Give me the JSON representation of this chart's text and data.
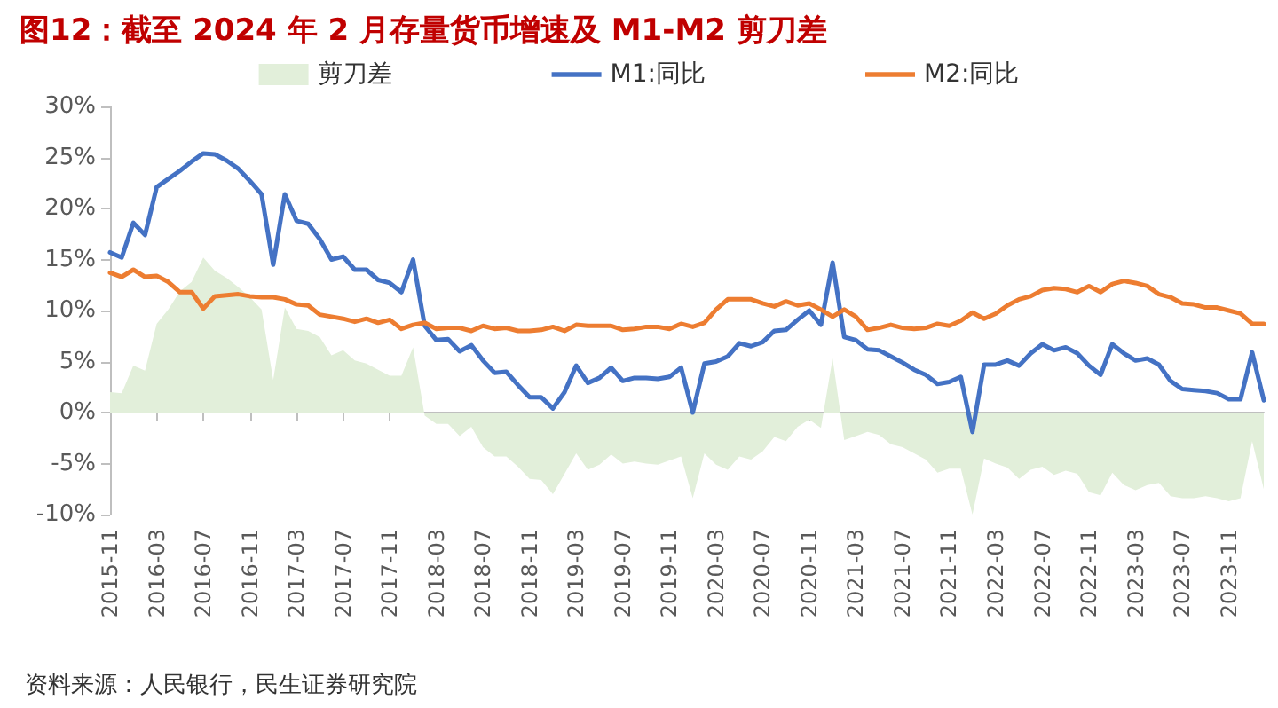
{
  "chart_data": {
    "type": "line",
    "title": "图12：截至 2024 年 2 月存量货币增速及 M1-M2 剪刀差",
    "annotations": [
      "资料来源：人民银行，民生证券研究院"
    ],
    "categories": [
      "2015-11",
      null,
      null,
      null,
      "2016-03",
      null,
      null,
      null,
      "2016-07",
      null,
      null,
      null,
      "2016-11",
      null,
      null,
      null,
      "2017-03",
      null,
      null,
      null,
      "2017-07",
      null,
      null,
      null,
      "2017-11",
      null,
      null,
      null,
      "2018-03",
      null,
      null,
      null,
      "2018-07",
      null,
      null,
      null,
      "2018-11",
      null,
      null,
      null,
      "2019-03",
      null,
      null,
      null,
      "2019-07",
      null,
      null,
      null,
      "2019-11",
      null,
      null,
      null,
      "2020-03",
      null,
      null,
      null,
      "2020-07",
      null,
      null,
      null,
      "2020-11",
      null,
      null,
      null,
      "2021-03",
      null,
      null,
      null,
      "2021-07",
      null,
      null,
      null,
      "2021-11",
      null,
      null,
      null,
      "2022-03",
      null,
      null,
      null,
      "2022-07",
      null,
      null,
      null,
      "2022-11",
      null,
      null,
      null,
      "2023-03",
      null,
      null,
      null,
      "2023-07",
      null,
      null,
      null,
      "2023-11",
      null,
      null,
      null
    ],
    "series": [
      {
        "name": "剪刀差",
        "type": "area",
        "color": "#e2efda",
        "values": [
          2.0,
          1.9,
          4.6,
          4.1,
          8.7,
          10.1,
          11.9,
          12.8,
          15.2,
          13.9,
          13.2,
          12.3,
          11.3,
          10.1,
          3.2,
          10.3,
          8.2,
          8.0,
          7.4,
          5.6,
          6.1,
          5.1,
          4.8,
          4.2,
          3.6,
          3.6,
          6.4,
          -0.3,
          -1.1,
          -1.1,
          -2.3,
          -1.4,
          -3.4,
          -4.3,
          -4.3,
          -5.3,
          -6.5,
          -6.6,
          -8.0,
          -6.0,
          -4.0,
          -5.6,
          -5.1,
          -4.1,
          -5.0,
          -4.8,
          -5.0,
          -5.1,
          -4.7,
          -4.3,
          -8.4,
          -4.0,
          -5.1,
          -5.6,
          -4.3,
          -4.6,
          -3.8,
          -2.4,
          -2.8,
          -1.4,
          -0.7,
          -1.5,
          5.3,
          -2.7,
          -2.3,
          -1.9,
          -2.2,
          -3.1,
          -3.4,
          -4.0,
          -4.6,
          -5.9,
          -5.5,
          -5.5,
          -10.0,
          -4.5,
          -5.0,
          -5.4,
          -6.5,
          -5.6,
          -5.3,
          -6.1,
          -5.7,
          -6.0,
          -7.8,
          -8.1,
          -5.9,
          -7.1,
          -7.6,
          -7.1,
          -6.9,
          -8.2,
          -8.4,
          -8.4,
          -8.2,
          -8.4,
          -8.7,
          -8.4,
          -2.8,
          -7.5
        ]
      },
      {
        "name": "M1:同比",
        "color": "#4472c4",
        "values": [
          15.7,
          15.2,
          18.6,
          17.4,
          22.1,
          22.9,
          23.7,
          24.6,
          25.4,
          25.3,
          24.7,
          23.9,
          22.7,
          21.4,
          14.5,
          21.4,
          18.8,
          18.5,
          17.0,
          15.0,
          15.3,
          14.0,
          14.0,
          13.0,
          12.7,
          11.8,
          15.0,
          8.5,
          7.1,
          7.2,
          6.0,
          6.6,
          5.1,
          3.9,
          4.0,
          2.7,
          1.5,
          1.5,
          0.4,
          2.0,
          4.6,
          2.9,
          3.4,
          4.4,
          3.1,
          3.4,
          3.4,
          3.3,
          3.5,
          4.4,
          0.0,
          4.8,
          5.0,
          5.5,
          6.8,
          6.5,
          6.9,
          8.0,
          8.1,
          9.1,
          10.0,
          8.6,
          14.7,
          7.4,
          7.1,
          6.2,
          6.1,
          5.5,
          4.9,
          4.2,
          3.7,
          2.8,
          3.0,
          3.5,
          -1.9,
          4.7,
          4.7,
          5.1,
          4.6,
          5.8,
          6.7,
          6.1,
          6.4,
          5.8,
          4.6,
          3.7,
          6.7,
          5.8,
          5.1,
          5.3,
          4.7,
          3.1,
          2.3,
          2.2,
          2.1,
          1.9,
          1.3,
          1.3,
          5.9,
          1.2
        ]
      },
      {
        "name": "M2:同比",
        "color": "#ed7d31",
        "values": [
          13.7,
          13.3,
          14.0,
          13.3,
          13.4,
          12.8,
          11.8,
          11.8,
          10.2,
          11.4,
          11.5,
          11.6,
          11.4,
          11.3,
          11.3,
          11.1,
          10.6,
          10.5,
          9.6,
          9.4,
          9.2,
          8.9,
          9.2,
          8.8,
          9.1,
          8.2,
          8.6,
          8.8,
          8.2,
          8.3,
          8.3,
          8.0,
          8.5,
          8.2,
          8.3,
          8.0,
          8.0,
          8.1,
          8.4,
          8.0,
          8.6,
          8.5,
          8.5,
          8.5,
          8.1,
          8.2,
          8.4,
          8.4,
          8.2,
          8.7,
          8.4,
          8.8,
          10.1,
          11.1,
          11.1,
          11.1,
          10.7,
          10.4,
          10.9,
          10.5,
          10.7,
          10.1,
          9.4,
          10.1,
          9.4,
          8.1,
          8.3,
          8.6,
          8.3,
          8.2,
          8.3,
          8.7,
          8.5,
          9.0,
          9.8,
          9.2,
          9.7,
          10.5,
          11.1,
          11.4,
          12.0,
          12.2,
          12.1,
          11.8,
          12.4,
          11.8,
          12.6,
          12.9,
          12.7,
          12.4,
          11.6,
          11.3,
          10.7,
          10.6,
          10.3,
          10.3,
          10.0,
          9.7,
          8.7,
          8.7
        ]
      }
    ],
    "ylim": [
      -10,
      30
    ],
    "yticks": [
      {
        "value": -10,
        "label": "-10%"
      },
      {
        "value": -5,
        "label": "-5%"
      },
      {
        "value": 0,
        "label": "0%"
      },
      {
        "value": 5,
        "label": "5%"
      },
      {
        "value": 10,
        "label": "10%"
      },
      {
        "value": 15,
        "label": "15%"
      },
      {
        "value": 20,
        "label": "20%"
      },
      {
        "value": 25,
        "label": "25%"
      },
      {
        "value": 30,
        "label": "30%"
      }
    ],
    "legend": "top",
    "marker": "none",
    "line_style": "solid"
  }
}
